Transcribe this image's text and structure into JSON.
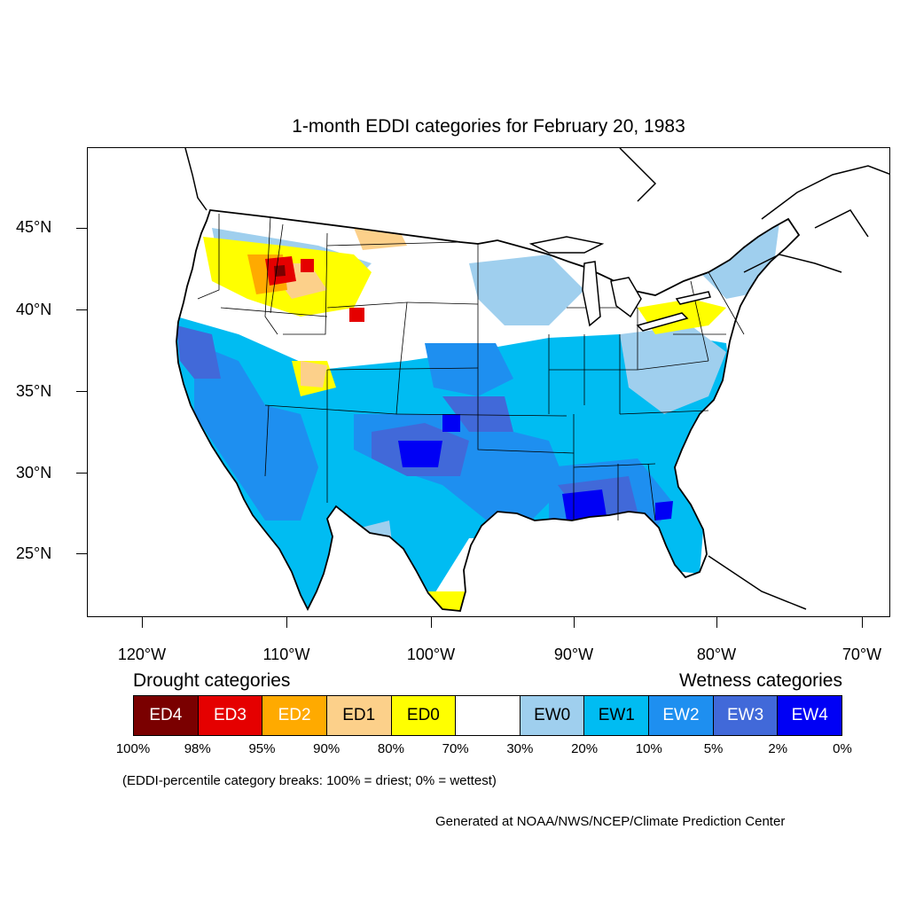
{
  "title": "1-month EDDI categories for February 20, 1983",
  "lat_labels": [
    "45°N",
    "40°N",
    "35°N",
    "30°N",
    "25°N"
  ],
  "lon_labels": [
    "120°W",
    "110°W",
    "100°W",
    "90°W",
    "80°W",
    "70°W"
  ],
  "legend": {
    "drought_heading": "Drought categories",
    "wetness_heading": "Wetness categories",
    "categories": [
      {
        "label": "ED4",
        "color": "#7a0000",
        "text_color": "#ffffff"
      },
      {
        "label": "ED3",
        "color": "#e50000",
        "text_color": "#ffffff"
      },
      {
        "label": "ED2",
        "color": "#ffaa00",
        "text_color": "#ffffff"
      },
      {
        "label": "ED1",
        "color": "#fcd08a",
        "text_color": "#000000"
      },
      {
        "label": "ED0",
        "color": "#ffff00",
        "text_color": "#000000"
      },
      {
        "label": "",
        "color": "#ffffff",
        "text_color": "#000000"
      },
      {
        "label": "EW0",
        "color": "#9fcfee",
        "text_color": "#000000"
      },
      {
        "label": "EW1",
        "color": "#00bcf2",
        "text_color": "#000000"
      },
      {
        "label": "EW2",
        "color": "#1e8ff0",
        "text_color": "#ffffff"
      },
      {
        "label": "EW3",
        "color": "#4169d9",
        "text_color": "#ffffff"
      },
      {
        "label": "EW4",
        "color": "#0000f5",
        "text_color": "#ffffff"
      }
    ],
    "percentiles": [
      "100%",
      "98%",
      "95%",
      "90%",
      "80%",
      "70%",
      "30%",
      "20%",
      "10%",
      "5%",
      "2%",
      "0%"
    ]
  },
  "note": "(EDDI-percentile category breaks: 100% = driest; 0% = wettest)",
  "credit": "Generated at NOAA/NWS/NCEP/Climate Prediction Center"
}
